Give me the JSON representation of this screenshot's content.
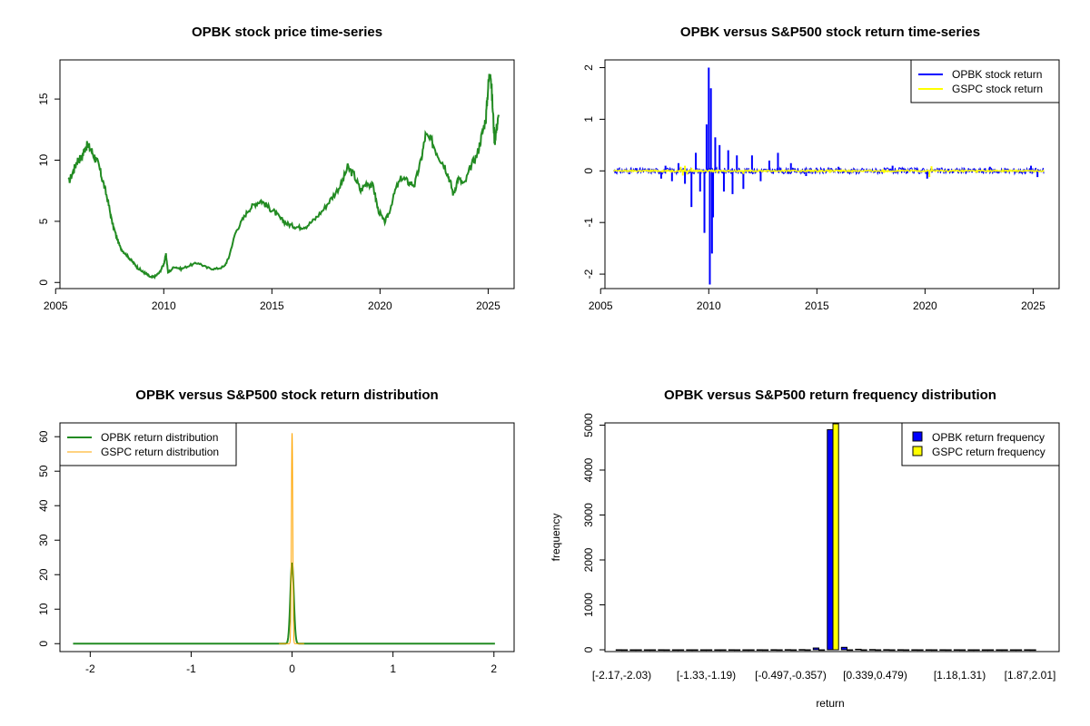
{
  "colors": {
    "price": "#228B22",
    "opbk_return": "#0000FF",
    "gspc_return": "#FFFF00",
    "opbk_density": "#228B22",
    "gspc_density": "#FFA500",
    "opbk_bar": "#0000FF",
    "gspc_bar": "#FFFF00"
  },
  "chart_data": [
    {
      "id": "price",
      "type": "line",
      "title": "OPBK stock price time-series",
      "xlim": [
        2005.2,
        2026.2
      ],
      "ylim": [
        -0.5,
        18.2
      ],
      "xticks": [
        2005,
        2010,
        2015,
        2020,
        2025
      ],
      "yticks": [
        0,
        5,
        10,
        15
      ],
      "series": [
        {
          "name": "OPBK price",
          "x": [
            2005.6,
            2005.8,
            2006.0,
            2006.2,
            2006.4,
            2006.6,
            2006.8,
            2007.0,
            2007.2,
            2007.4,
            2007.6,
            2007.8,
            2008.0,
            2008.2,
            2008.4,
            2008.6,
            2008.8,
            2009.0,
            2009.2,
            2009.4,
            2009.6,
            2009.8,
            2010.0,
            2010.1,
            2010.2,
            2010.5,
            2010.8,
            2011.2,
            2011.6,
            2012.0,
            2012.4,
            2012.8,
            2013.0,
            2013.3,
            2013.6,
            2013.9,
            2014.2,
            2014.5,
            2014.8,
            2015.1,
            2015.4,
            2015.7,
            2016.0,
            2016.3,
            2016.6,
            2017.0,
            2017.4,
            2017.8,
            2018.2,
            2018.5,
            2018.8,
            2019.1,
            2019.4,
            2019.7,
            2019.9,
            2020.2,
            2020.4,
            2020.7,
            2021.0,
            2021.3,
            2021.6,
            2021.9,
            2022.1,
            2022.4,
            2022.7,
            2023.0,
            2023.2,
            2023.4,
            2023.6,
            2023.9,
            2024.2,
            2024.5,
            2024.7,
            2024.9,
            2025.0,
            2025.1,
            2025.2,
            2025.3,
            2025.4,
            2025.5
          ],
          "values": [
            8.2,
            9.0,
            10.0,
            10.2,
            11.2,
            11.0,
            10.3,
            9.5,
            8.2,
            6.8,
            5.0,
            3.8,
            2.8,
            2.4,
            2.0,
            1.6,
            1.2,
            0.9,
            0.7,
            0.4,
            0.5,
            0.8,
            1.5,
            2.3,
            0.8,
            1.3,
            1.1,
            1.4,
            1.6,
            1.2,
            1.1,
            1.3,
            2.0,
            4.0,
            5.0,
            5.9,
            6.4,
            6.7,
            6.2,
            5.8,
            5.2,
            4.8,
            4.6,
            4.5,
            4.6,
            5.2,
            6.0,
            7.0,
            8.0,
            9.4,
            8.8,
            7.5,
            8.2,
            7.8,
            6.0,
            4.9,
            5.6,
            7.5,
            8.6,
            8.2,
            8.0,
            10.0,
            12.0,
            11.5,
            10.4,
            9.5,
            8.5,
            7.2,
            8.5,
            8.0,
            9.5,
            10.5,
            12.0,
            13.5,
            16.0,
            17.6,
            14.5,
            11.5,
            12.8,
            13.6
          ]
        }
      ]
    },
    {
      "id": "returns",
      "type": "line",
      "title": "OPBK versus S&P500 stock return time-series",
      "xlim": [
        2005.2,
        2026.2
      ],
      "ylim": [
        -2.28,
        2.15
      ],
      "xticks": [
        2005,
        2010,
        2015,
        2020,
        2025
      ],
      "yticks": [
        -2,
        -1,
        0,
        1,
        2
      ],
      "legend_position": "top-right",
      "series": [
        {
          "name": "OPBK stock return",
          "spikes_x": [
            2007.8,
            2008.0,
            2008.3,
            2008.6,
            2008.9,
            2009.2,
            2009.4,
            2009.6,
            2009.8,
            2009.9,
            2010.0,
            2010.05,
            2010.1,
            2010.15,
            2010.2,
            2010.3,
            2010.5,
            2010.7,
            2010.9,
            2011.1,
            2011.3,
            2011.6,
            2012.0,
            2012.4,
            2012.8,
            2013.2,
            2013.8,
            2014.5,
            2016.0,
            2018.5,
            2020.1,
            2023.0,
            2024.9,
            2025.2
          ],
          "spikes_y": [
            -0.15,
            0.1,
            -0.2,
            0.15,
            -0.25,
            -0.7,
            0.35,
            -0.4,
            -1.2,
            0.9,
            2.0,
            -2.2,
            1.6,
            -1.6,
            -0.9,
            0.65,
            0.5,
            -0.4,
            0.4,
            -0.45,
            0.3,
            -0.35,
            0.3,
            -0.2,
            0.2,
            0.35,
            0.15,
            -0.1,
            0.08,
            0.1,
            -0.15,
            0.08,
            0.1,
            -0.12
          ],
          "noise_amplitude": 0.06
        },
        {
          "name": "GSPC stock return",
          "spikes_x": [
            2008.7,
            2008.8,
            2008.9,
            2009.0,
            2009.2,
            2010.4,
            2011.6,
            2015.6,
            2018.1,
            2020.2,
            2020.3,
            2022.4
          ],
          "spikes_y": [
            0.08,
            -0.09,
            0.1,
            -0.07,
            0.06,
            -0.04,
            -0.06,
            -0.04,
            -0.04,
            -0.12,
            0.09,
            -0.04
          ],
          "noise_amplitude": 0.015
        }
      ]
    },
    {
      "id": "density",
      "type": "line",
      "title": "OPBK versus S&P500 stock return distribution",
      "xlim": [
        -2.3,
        2.2
      ],
      "ylim": [
        -2.3,
        64
      ],
      "xticks": [
        -2,
        -1,
        0,
        1,
        2
      ],
      "yticks": [
        0,
        10,
        20,
        30,
        40,
        50,
        60
      ],
      "legend_position": "top-left",
      "series": [
        {
          "name": "OPBK return distribution",
          "range": [
            -2.17,
            2.01
          ],
          "peak": 23.5,
          "sd": 0.017
        },
        {
          "name": "GSPC return distribution",
          "range": [
            -0.13,
            0.12
          ],
          "peak": 61,
          "sd": 0.0066
        }
      ]
    },
    {
      "id": "freq",
      "type": "bar",
      "title": "OPBK versus S&P500 return frequency distribution",
      "xlabel": "return",
      "ylabel": "frequency",
      "ylim": [
        -40,
        5050
      ],
      "yticks": [
        0,
        1000,
        2000,
        3000,
        4000,
        5000
      ],
      "legend_position": "top-right",
      "category_labels": [
        "[-2.17,-2.03)",
        "[-1.33,-1.19)",
        "[-0.497,-0.357)",
        "[0.339,0.479)",
        "[1.18,1.31)",
        "[1.87,2.01]"
      ],
      "label_bins": [
        0,
        6,
        12,
        18,
        24,
        29
      ],
      "n_bins": 30,
      "series": [
        {
          "name": "OPBK return frequency",
          "values": [
            1,
            0,
            0,
            1,
            0,
            0,
            0,
            0,
            1,
            0,
            1,
            2,
            3,
            5,
            40,
            4900,
            55,
            12,
            6,
            3,
            2,
            1,
            1,
            1,
            1,
            0,
            0,
            0,
            0,
            1
          ]
        },
        {
          "name": "GSPC return frequency",
          "values": [
            0,
            0,
            0,
            0,
            0,
            0,
            0,
            0,
            0,
            0,
            0,
            0,
            0,
            0,
            0,
            5030,
            0,
            0,
            0,
            0,
            0,
            0,
            0,
            0,
            0,
            0,
            0,
            0,
            0,
            0
          ]
        }
      ]
    }
  ]
}
